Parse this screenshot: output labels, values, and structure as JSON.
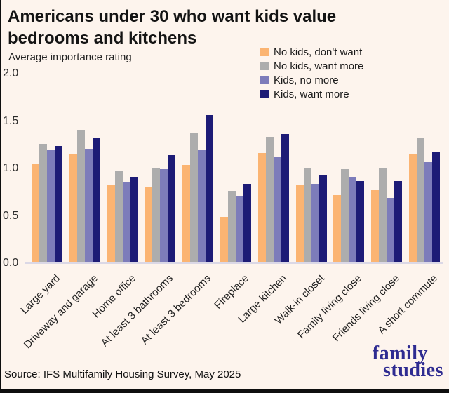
{
  "title": {
    "lines": [
      "Americans under 30 who want kids value",
      "bedrooms and kitchens"
    ]
  },
  "subtitle": "Average importance rating",
  "source": "Source: IFS Multifamily Housing Survey, May 2025",
  "logo": {
    "line1": "family",
    "line2": "studies"
  },
  "colors": {
    "background": "#fdf4ed",
    "axis_line": "#dbd8e6",
    "logo": "#2e2b91",
    "orange": "#fbb472",
    "gray": "#adadad",
    "purple": "#7d7cba",
    "navy": "#1d1b76"
  },
  "chart_data": {
    "type": "bar",
    "title": "Americans under 30 who want kids value bedrooms and kitchens",
    "ylabel": "Average importance rating",
    "ylim": [
      0,
      2.0
    ],
    "yticks": [
      "2.0",
      "1.5",
      "1.0",
      "0.5",
      "0.0"
    ],
    "grid": false,
    "legend_position": "upper right",
    "categories": [
      "Large yard",
      "Driveway and garage",
      "Home office",
      "At least 3 bathrooms",
      "At least 3 bedrooms",
      "Fireplace",
      "Large kitchen",
      "Walk-in closet",
      "Family living close",
      "Friends living close",
      "A short commute"
    ],
    "series": [
      {
        "name": "No kids, don't want",
        "color": "#fbb472",
        "values": [
          1.05,
          1.15,
          0.83,
          0.81,
          1.04,
          0.49,
          1.16,
          0.82,
          0.72,
          0.77,
          1.15
        ]
      },
      {
        "name": "No kids, want more",
        "color": "#adadad",
        "values": [
          1.26,
          1.41,
          0.98,
          1.01,
          1.38,
          0.76,
          1.33,
          1.01,
          0.99,
          1.01,
          1.32
        ]
      },
      {
        "name": "Kids, no more",
        "color": "#7d7cba",
        "values": [
          1.19,
          1.2,
          0.86,
          0.99,
          1.19,
          0.7,
          1.12,
          0.84,
          0.91,
          0.69,
          1.07
        ]
      },
      {
        "name": "Kids, want more",
        "color": "#1d1b76",
        "values": [
          1.24,
          1.32,
          0.91,
          1.14,
          1.56,
          0.84,
          1.36,
          0.93,
          0.87,
          0.87,
          1.17
        ]
      }
    ]
  }
}
